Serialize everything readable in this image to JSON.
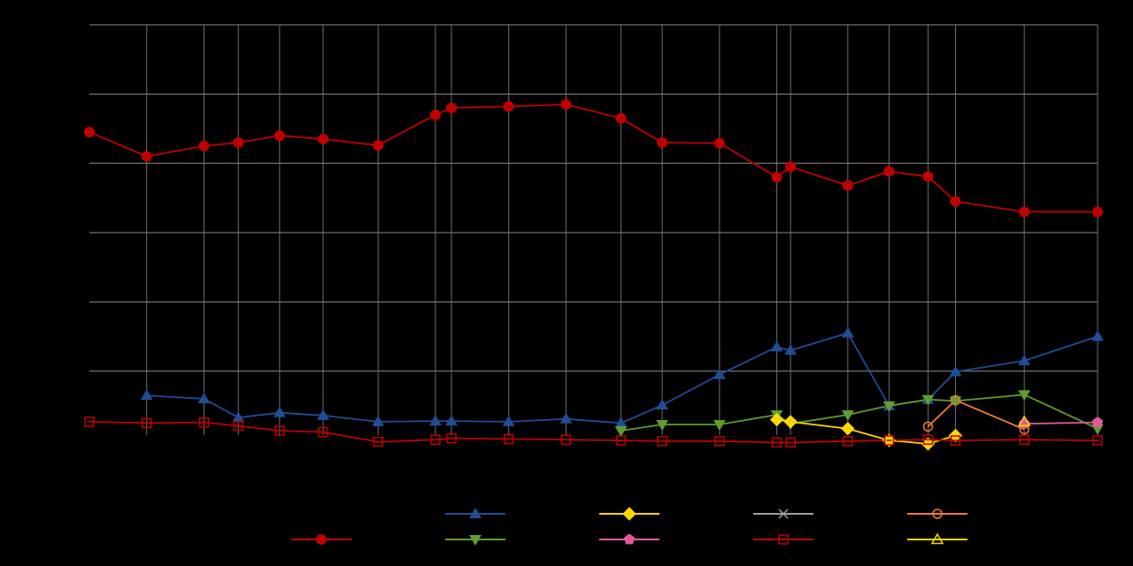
{
  "chart_data": {
    "type": "line",
    "title": "",
    "xlabel": "",
    "ylabel": "",
    "ylim": [
      0,
      60
    ],
    "xlim": [
      2001.0,
      2023.0
    ],
    "grid": true,
    "legend_placement": "bottom",
    "background": "#000000",
    "series": [
      {
        "color": "#c00000",
        "marker": "circle",
        "points": [
          [
            2001.0,
            44.5
          ],
          [
            2002.25,
            41.0
          ],
          [
            2003.5,
            42.5
          ],
          [
            2004.25,
            43.0
          ],
          [
            2005.15,
            44.0
          ],
          [
            2006.1,
            43.5
          ],
          [
            2007.3,
            42.6
          ],
          [
            2008.55,
            47.0
          ],
          [
            2008.9,
            48.0
          ],
          [
            2010.15,
            48.2
          ],
          [
            2011.4,
            48.5
          ],
          [
            2012.6,
            46.5
          ],
          [
            2013.5,
            43.0
          ],
          [
            2014.75,
            42.9
          ],
          [
            2016.0,
            38.0
          ],
          [
            2016.3,
            39.5
          ],
          [
            2017.55,
            36.8
          ],
          [
            2018.45,
            38.8
          ],
          [
            2019.3,
            38.1
          ],
          [
            2019.9,
            34.5
          ],
          [
            2021.4,
            33.0
          ],
          [
            2023.0,
            33.0
          ]
        ]
      },
      {
        "color": "#1f4e96",
        "marker": "triangle-up",
        "points": [
          [
            2002.25,
            6.5
          ],
          [
            2003.5,
            6.0
          ],
          [
            2004.25,
            3.3
          ],
          [
            2005.15,
            4.0
          ],
          [
            2006.1,
            3.6
          ],
          [
            2007.3,
            2.7
          ],
          [
            2008.55,
            2.8
          ],
          [
            2008.9,
            2.8
          ],
          [
            2010.15,
            2.7
          ],
          [
            2011.4,
            3.1
          ],
          [
            2012.6,
            2.5
          ],
          [
            2013.5,
            5.1
          ],
          [
            2014.75,
            9.5
          ],
          [
            2016.0,
            13.5
          ],
          [
            2016.3,
            13.0
          ],
          [
            2017.55,
            15.5
          ],
          [
            2018.45,
            5.0
          ],
          [
            2019.3,
            5.9
          ],
          [
            2019.9,
            9.9
          ],
          [
            2021.4,
            11.5
          ],
          [
            2023.0,
            15.0
          ]
        ]
      },
      {
        "color": "#5f9e2e",
        "marker": "triangle-down",
        "points": [
          [
            2012.6,
            1.4
          ],
          [
            2013.5,
            2.3
          ],
          [
            2014.75,
            2.3
          ],
          [
            2016.0,
            3.7
          ],
          [
            2016.3,
            2.4
          ],
          [
            2017.55,
            3.7
          ],
          [
            2018.45,
            5.0
          ],
          [
            2019.3,
            5.9
          ],
          [
            2019.9,
            5.7
          ],
          [
            2021.4,
            6.6
          ],
          [
            2023.0,
            1.7
          ]
        ]
      },
      {
        "color": "#ffd700",
        "marker": "diamond",
        "points": [
          [
            2016.0,
            3.0
          ],
          [
            2016.3,
            2.7
          ],
          [
            2017.55,
            1.7
          ],
          [
            2018.45,
            0.0
          ],
          [
            2019.3,
            -0.5
          ],
          [
            2019.9,
            0.7
          ]
        ]
      },
      {
        "color": "#e05a9a",
        "marker": "pentagon",
        "points": [
          [
            2021.4,
            2.4
          ],
          [
            2023.0,
            2.6
          ]
        ]
      },
      {
        "color": "#a0a0a0",
        "marker": "cross",
        "points": []
      },
      {
        "color": "#c00000",
        "marker": "square-open",
        "points": [
          [
            2001.0,
            2.7
          ],
          [
            2002.25,
            2.5
          ],
          [
            2003.5,
            2.6
          ],
          [
            2004.25,
            2.1
          ],
          [
            2005.15,
            1.4
          ],
          [
            2006.1,
            1.2
          ],
          [
            2007.3,
            -0.2
          ],
          [
            2008.55,
            0.1
          ],
          [
            2008.9,
            0.3
          ],
          [
            2010.15,
            0.2
          ],
          [
            2011.4,
            0.1
          ],
          [
            2012.6,
            0.0
          ],
          [
            2013.5,
            -0.1
          ],
          [
            2014.75,
            -0.1
          ],
          [
            2016.0,
            -0.3
          ],
          [
            2016.3,
            -0.3
          ],
          [
            2017.55,
            -0.1
          ],
          [
            2018.45,
            0.0
          ],
          [
            2019.3,
            0.1
          ],
          [
            2019.9,
            0.0
          ],
          [
            2021.4,
            0.1
          ],
          [
            2023.0,
            0.0
          ]
        ]
      },
      {
        "color": "#ed7d31",
        "marker": "circle-open",
        "points": [
          [
            2019.3,
            2.0
          ],
          [
            2019.9,
            5.8
          ],
          [
            2021.4,
            1.6
          ]
        ]
      },
      {
        "color": "#ffd700",
        "marker": "triangle-up-open",
        "points": [
          [
            2021.4,
            2.7
          ]
        ]
      }
    ],
    "legend": [
      {
        "row": 1,
        "col": 0,
        "series_index": 1
      },
      {
        "row": 1,
        "col": 1,
        "series_index": 3
      },
      {
        "row": 1,
        "col": 2,
        "series_index": 5
      },
      {
        "row": 1,
        "col": 3,
        "series_index": 7
      },
      {
        "row": 2,
        "col": -1,
        "series_index": 0
      },
      {
        "row": 2,
        "col": 0,
        "series_index": 2
      },
      {
        "row": 2,
        "col": 1,
        "series_index": 4
      },
      {
        "row": 2,
        "col": 2,
        "series_index": 6
      },
      {
        "row": 2,
        "col": 3,
        "series_index": 8
      }
    ]
  }
}
